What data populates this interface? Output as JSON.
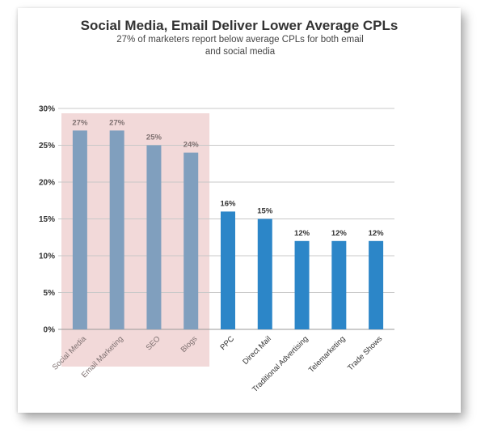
{
  "chart_data": {
    "type": "bar",
    "title": "Social Media, Email Deliver Lower Average CPLs",
    "subtitle": "27% of marketers report below average CPLs for both email and social media",
    "categories": [
      "Social Media",
      "Email Marketing",
      "SEO",
      "Blogs",
      "PPC",
      "Direct Mail",
      "Traditional Advertising",
      "Telemarketing",
      "Trade Shows"
    ],
    "values": [
      27,
      27,
      25,
      24,
      16,
      15,
      12,
      12,
      12
    ],
    "data_labels": [
      "27%",
      "27%",
      "25%",
      "24%",
      "16%",
      "15%",
      "12%",
      "12%",
      "12%"
    ],
    "highlighted_count": 4,
    "ylim": [
      0,
      30
    ],
    "yticks": [
      "0%",
      "5%",
      "10%",
      "15%",
      "20%",
      "25%",
      "30%"
    ],
    "grid": true,
    "xlabel": "",
    "ylabel": "",
    "colors": {
      "highlight_bar": "#809fbe",
      "highlight_region": "#f2d9d9",
      "highlight_text": "#7d6f6f",
      "bar": "#2c86c8",
      "text": "#333333",
      "grid": "#c8c8c8"
    }
  }
}
